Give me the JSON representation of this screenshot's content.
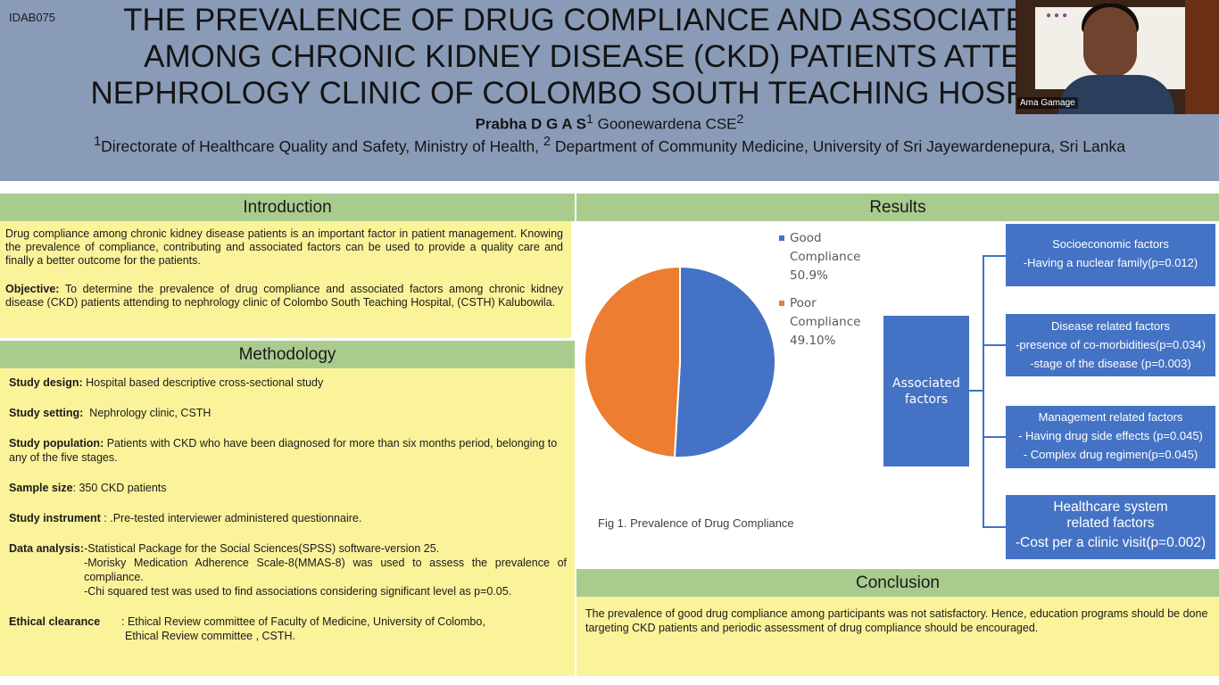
{
  "header": {
    "poster_id": "IDAB075",
    "title_lines": [
      "THE PREVALENCE OF DRUG COMPLIANCE AND ASSOCIATED FA",
      "AMONG CHRONIC KIDNEY DISEASE (CKD) PATIENTS ATTENDI",
      "NEPHROLOGY CLINIC OF COLOMBO SOUTH TEACHING HOSPITAL, K"
    ],
    "author1": "Prabha D G A S",
    "author1_sup": "1",
    "author2": "Goonewardena CSE",
    "author2_sup": "2",
    "affil_sup1": "1",
    "affil1": "Directorate of Healthcare Quality and Safety, Ministry of Health,",
    "affil_sup2": "2",
    "affil2": "Department of Community Medicine, University of Sri Jayewardenepura, Sri Lanka"
  },
  "video": {
    "participant_name": "Ama Gamage"
  },
  "introduction": {
    "heading": "Introduction",
    "paragraph": "Drug compliance among chronic kidney disease patients is an important factor in patient management. Knowing the prevalence of compliance, contributing and associated factors can be used to provide a quality care and finally a better outcome for the patients.",
    "objective_label": "Objective:",
    "objective_text": "To determine the prevalence of drug compliance and associated factors among chronic kidney disease (CKD) patients attending to nephrology clinic of Colombo South Teaching Hospital, (CSTH) Kalubowila."
  },
  "methodology": {
    "heading": "Methodology",
    "items": [
      {
        "label": "Study design:",
        "text": "Hospital based descriptive cross-sectional study"
      },
      {
        "label": "Study setting:",
        "text": "Nephrology clinic, CSTH"
      },
      {
        "label": "Study population:",
        "text": "Patients with CKD who have been diagnosed for more than six months period, belonging to any of the five stages."
      },
      {
        "label": "Sample size",
        "text": ": 350 CKD patients"
      },
      {
        "label": "Study instrument",
        "text": ": .Pre-tested interviewer administered questionnaire."
      }
    ],
    "data_analysis_label": "Data analysis: ",
    "data_analysis": [
      "-Statistical Package for the Social Sciences(SPSS) software-version 25.",
      "-Morisky Medication Adherence Scale-8(MMAS-8) was used to assess the prevalence of compliance.",
      "-Chi squared test was used to find associations considering significant level as p=0.05."
    ],
    "ethical_label": "Ethical clearance",
    "ethical_lines": [
      ": Ethical Review committee of Faculty of Medicine, University of Colombo,",
      "Ethical Review committee , CSTH."
    ]
  },
  "results": {
    "heading": "Results",
    "fig_caption": "Fig 1. Prevalence of Drug Compliance",
    "associated_label": "Associated factors",
    "factor_boxes": [
      {
        "title": "Socioeconomic factors",
        "lines": [
          "-Having a nuclear family(p=0.012)"
        ]
      },
      {
        "title": "Disease related factors",
        "lines": [
          "-presence of co-morbidities(p=0.034)",
          "-stage of the disease (p=0.003)"
        ]
      },
      {
        "title": "Management related factors",
        "lines": [
          "- Having drug side effects (p=0.045)",
          "- Complex drug regimen(p=0.045)"
        ]
      },
      {
        "title": "Healthcare system related factors",
        "lines": [
          "-Cost per a clinic visit(p=0.002)"
        ]
      }
    ]
  },
  "conclusion": {
    "heading": "Conclusion",
    "text": "The prevalence of good drug compliance among participants was not satisfactory. Hence, education programs should be done targeting CKD patients and periodic assessment of drug compliance should be encouraged."
  },
  "chart_data": {
    "type": "pie",
    "categories": [
      "Good Compliance",
      "Poor Compliance"
    ],
    "values": [
      50.9,
      49.1
    ],
    "value_labels": [
      "50.9%",
      "49.10%"
    ],
    "colors": [
      "#4472c4",
      "#ed7d31"
    ],
    "title": "",
    "legend_position": "right"
  }
}
